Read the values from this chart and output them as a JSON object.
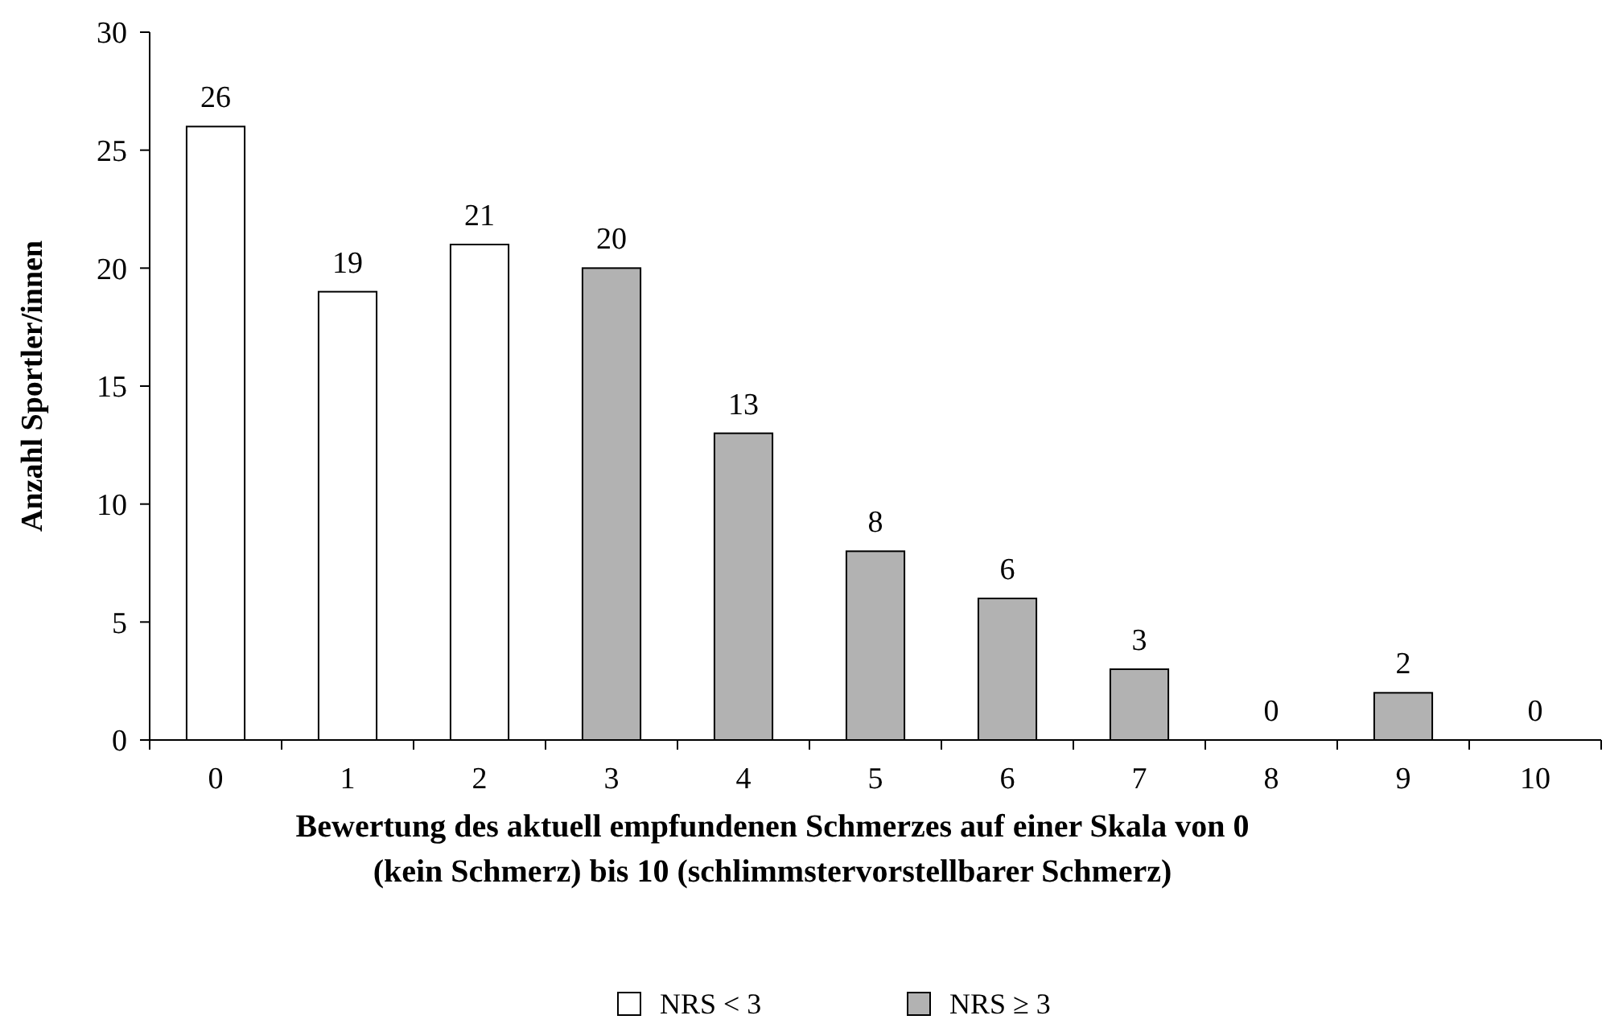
{
  "chart_data": {
    "type": "bar",
    "ylabel": "Anzahl Sportler/innen",
    "xlabel": "Bewertung des aktuell empfundenen Schmerzes auf einer Skala von 0\n(kein Schmerz) bis 10 (schlimmstervorstellbarer  Schmerz)",
    "categories": [
      "0",
      "1",
      "2",
      "3",
      "4",
      "5",
      "6",
      "7",
      "8",
      "9",
      "10"
    ],
    "series": [
      {
        "name": "NRS < 3",
        "color": "#ffffff",
        "values": [
          26,
          19,
          21,
          null,
          null,
          null,
          null,
          null,
          null,
          null,
          null
        ]
      },
      {
        "name": "NRS ≥ 3",
        "color": "#b2b2b2",
        "values": [
          null,
          null,
          null,
          20,
          13,
          8,
          6,
          3,
          0,
          2,
          0
        ]
      }
    ],
    "ylim": [
      0,
      30
    ],
    "yticks": [
      0,
      5,
      10,
      15,
      20,
      25,
      30
    ],
    "data_labels": true,
    "legend": "bottom",
    "grid": false
  }
}
